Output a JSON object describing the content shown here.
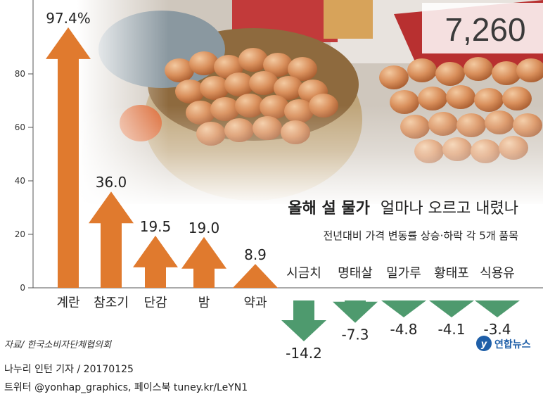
{
  "chart_data": {
    "type": "bar",
    "title_bold": "올해 설 물가",
    "title_rest": "얼마나 오르고 내렸나",
    "subtitle": "전년대비 가격 변동률 상승·하락 각 5개 품목",
    "ylim": [
      -16,
      100
    ],
    "yticks": [
      "0",
      "20",
      "40",
      "60",
      "80"
    ],
    "categories": [
      "계란",
      "참조기",
      "단감",
      "밤",
      "약과",
      "시금치",
      "명태살",
      "밀가루",
      "황태포",
      "식용유"
    ],
    "values": [
      97.4,
      36.0,
      19.5,
      19.0,
      8.9,
      -14.2,
      -7.3,
      -4.8,
      -4.1,
      -3.4
    ],
    "value_labels": [
      "97.4%",
      "36.0",
      "19.5",
      "19.0",
      "8.9",
      "-14.2",
      "-7.3",
      "-4.8",
      "-4.1",
      "-3.4"
    ],
    "colors": {
      "up": "#e07a2e",
      "down": "#4e9a6e",
      "axis": "#555555"
    },
    "background_text": "7,260",
    "source": "자료/ 한국소비자단체협의회",
    "logo_text": "연합뉴스"
  },
  "footer": {
    "credit": "나누리 인턴 기자 / 20170125",
    "social": "트위터 @yonhap_graphics, 페이스북 tuney.kr/LeYN1"
  }
}
